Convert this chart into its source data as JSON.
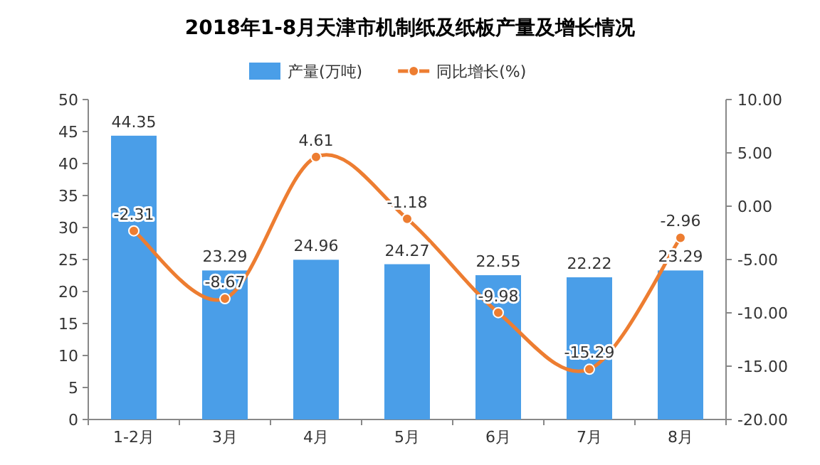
{
  "chart_data": {
    "type": "bar",
    "title": "2018年1-8月天津市机制纸及纸板产量及增长情况",
    "categories": [
      "1-2月",
      "3月",
      "4月",
      "5月",
      "6月",
      "7月",
      "8月"
    ],
    "series": [
      {
        "name": "产量(万吨)",
        "color": "#4a9ee8",
        "values": [
          44.35,
          23.29,
          24.96,
          24.27,
          22.55,
          22.22,
          23.29
        ]
      },
      {
        "name": "同比增长(%)",
        "type": "line",
        "axis": "y2",
        "color": "#ed7d31",
        "marker": "circle",
        "values": [
          -2.31,
          -8.67,
          4.61,
          -1.18,
          -9.98,
          -15.29,
          -2.96
        ]
      }
    ],
    "ylim": [
      0,
      50
    ],
    "yticks": [
      0,
      5,
      10,
      15,
      20,
      25,
      30,
      35,
      40,
      45,
      50
    ],
    "y2lim": [
      -20,
      10
    ],
    "y2ticks": [
      {
        "value": -20,
        "label": "-20.00"
      },
      {
        "value": -15,
        "label": "-15.00"
      },
      {
        "value": -10,
        "label": "-10.00"
      },
      {
        "value": -5,
        "label": "-5.00"
      },
      {
        "value": 0,
        "label": "0.00"
      },
      {
        "value": 5,
        "label": "5.00"
      },
      {
        "value": 10,
        "label": "10.00"
      }
    ],
    "data_labels": true,
    "legend": "top",
    "grid": false
  }
}
